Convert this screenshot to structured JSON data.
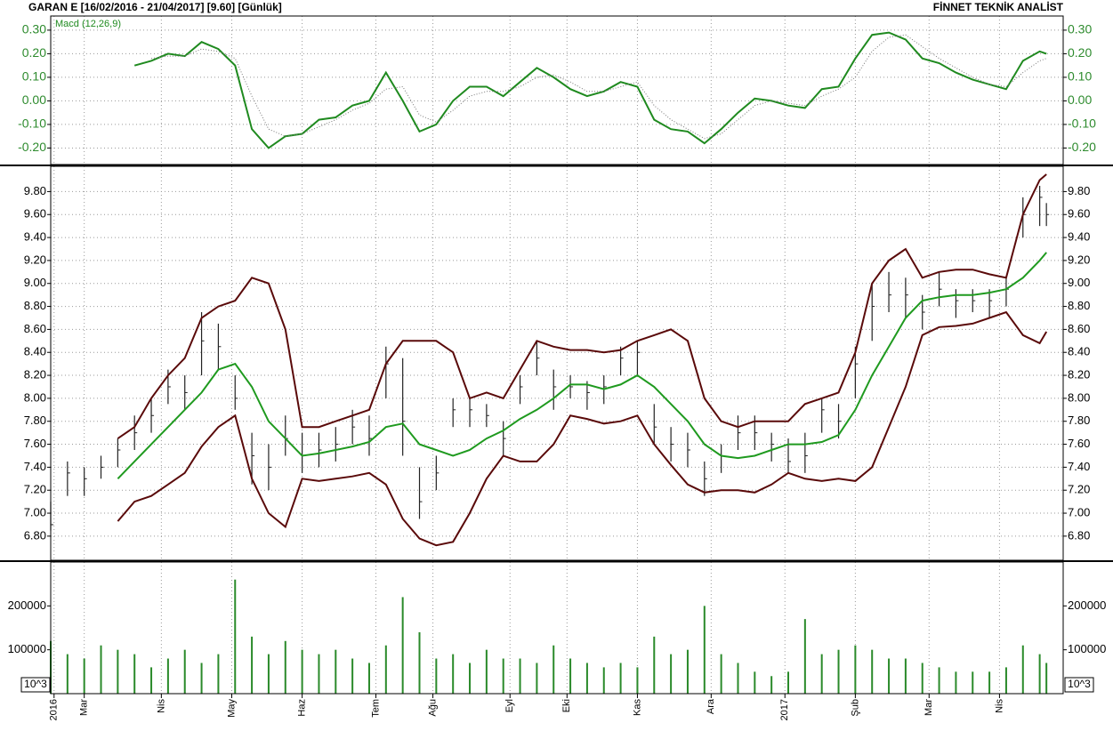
{
  "header": {
    "title": "GARAN E  [16/02/2016 - 21/04/2017]  [9.60]  [Günlük]",
    "brand": "FİNNET TEKNİK ANALİST"
  },
  "chart_data": [
    {
      "type": "line",
      "label": "Macd (12,26,9)",
      "axis_color": "#2e8b2e",
      "x": [
        0,
        5,
        10,
        15,
        20,
        25,
        30,
        35,
        40,
        45,
        50,
        55,
        60,
        65,
        70,
        75,
        80,
        85,
        90,
        95,
        100,
        105,
        110,
        115,
        120,
        125,
        130,
        135,
        140,
        145,
        150,
        155,
        160,
        165,
        170,
        175,
        180,
        185,
        190,
        195,
        200,
        205,
        210,
        215,
        220,
        225,
        230,
        235,
        240,
        245,
        250,
        255,
        260,
        265,
        270,
        275,
        280,
        285,
        290,
        295,
        297
      ],
      "ylim": [
        -0.27,
        0.36
      ],
      "yticks": [
        {
          "value": 0.3,
          "label": "0.30"
        },
        {
          "value": 0.2,
          "label": "0.20"
        },
        {
          "value": 0.1,
          "label": "0.10"
        },
        {
          "value": 0,
          "label": "0.00"
        },
        {
          "value": -0.1,
          "label": "-0.10"
        },
        {
          "value": -0.2,
          "label": "-0.20"
        }
      ],
      "grid": true,
      "series": [
        {
          "color": "#1f8a1f",
          "dotted": false,
          "values": [
            null,
            null,
            null,
            null,
            null,
            0.15,
            0.17,
            0.2,
            0.19,
            0.25,
            0.22,
            0.15,
            -0.12,
            -0.2,
            -0.15,
            -0.14,
            -0.08,
            -0.07,
            -0.02,
            0.0,
            0.12,
            0.0,
            -0.13,
            -0.1,
            0.0,
            0.06,
            0.06,
            0.02,
            0.08,
            0.14,
            0.1,
            0.05,
            0.02,
            0.04,
            0.08,
            0.06,
            -0.08,
            -0.12,
            -0.13,
            -0.18,
            -0.12,
            -0.05,
            0.01,
            0.0,
            -0.02,
            -0.03,
            0.05,
            0.06,
            0.18,
            0.28,
            0.29,
            0.26,
            0.18,
            0.16,
            0.12,
            0.09,
            0.07,
            0.05,
            0.17,
            0.21,
            0.2
          ]
        },
        {
          "color": "#777777",
          "dotted": true,
          "values": [
            null,
            null,
            null,
            null,
            null,
            null,
            0.18,
            0.19,
            0.19,
            0.22,
            0.21,
            0.18,
            0.02,
            -0.12,
            -0.15,
            -0.14,
            -0.11,
            -0.08,
            -0.04,
            -0.01,
            0.05,
            0.06,
            -0.06,
            -0.09,
            -0.04,
            0.02,
            0.04,
            0.04,
            0.06,
            0.1,
            0.11,
            0.08,
            0.04,
            0.04,
            0.06,
            0.08,
            -0.02,
            -0.08,
            -0.12,
            -0.16,
            -0.14,
            -0.08,
            -0.02,
            0.0,
            -0.01,
            -0.02,
            0.02,
            0.05,
            0.1,
            0.21,
            0.27,
            0.28,
            0.23,
            0.18,
            0.14,
            0.1,
            0.07,
            0.06,
            0.12,
            0.17,
            0.18
          ]
        }
      ]
    },
    {
      "type": "hlc",
      "axis_color": "#000000",
      "color": "#222222",
      "x": [
        0,
        5,
        10,
        15,
        20,
        25,
        30,
        35,
        40,
        45,
        50,
        55,
        60,
        65,
        70,
        75,
        80,
        85,
        90,
        95,
        100,
        105,
        110,
        115,
        120,
        125,
        130,
        135,
        140,
        145,
        150,
        155,
        160,
        165,
        170,
        175,
        180,
        185,
        190,
        195,
        200,
        205,
        210,
        215,
        220,
        225,
        230,
        235,
        240,
        245,
        250,
        255,
        260,
        265,
        270,
        275,
        280,
        285,
        290,
        295,
        297
      ],
      "ylim": [
        6.59,
        10.02
      ],
      "yticks": [
        {
          "value": 6.8,
          "label": "6.80"
        },
        {
          "value": 7,
          "label": "7.00"
        },
        {
          "value": 7.2,
          "label": "7.20"
        },
        {
          "value": 7.4,
          "label": "7.40"
        },
        {
          "value": 7.6,
          "label": "7.60"
        },
        {
          "value": 7.8,
          "label": "7.80"
        },
        {
          "value": 8,
          "label": "8.00"
        },
        {
          "value": 8.2,
          "label": "8.20"
        },
        {
          "value": 8.4,
          "label": "8.40"
        },
        {
          "value": 8.6,
          "label": "8.60"
        },
        {
          "value": 8.8,
          "label": "8.80"
        },
        {
          "value": 9,
          "label": "9.00"
        },
        {
          "value": 9.2,
          "label": "9.20"
        },
        {
          "value": 9.4,
          "label": "9.40"
        },
        {
          "value": 9.6,
          "label": "9.60"
        },
        {
          "value": 9.8,
          "label": "9.80"
        }
      ],
      "grid": true,
      "high": [
        7.1,
        7.45,
        7.4,
        7.5,
        7.65,
        7.85,
        8.0,
        8.25,
        8.2,
        8.75,
        8.65,
        8.2,
        7.7,
        7.6,
        7.85,
        7.7,
        7.7,
        7.75,
        7.9,
        7.85,
        8.45,
        8.35,
        7.4,
        7.5,
        8.0,
        8.0,
        7.95,
        7.8,
        8.2,
        8.5,
        8.25,
        8.2,
        8.15,
        8.2,
        8.45,
        8.5,
        7.95,
        7.75,
        7.7,
        7.45,
        7.6,
        7.85,
        7.85,
        7.7,
        7.65,
        7.7,
        8.0,
        7.95,
        8.45,
        9.0,
        9.1,
        9.05,
        8.9,
        9.1,
        8.95,
        8.95,
        8.95,
        9.05,
        9.75,
        9.85,
        9.7
      ],
      "low": [
        6.85,
        7.15,
        7.15,
        7.3,
        7.4,
        7.55,
        7.7,
        7.95,
        7.9,
        8.2,
        8.25,
        7.9,
        7.25,
        7.2,
        7.5,
        7.35,
        7.4,
        7.45,
        7.6,
        7.5,
        8.0,
        7.5,
        6.95,
        7.2,
        7.75,
        7.75,
        7.75,
        7.5,
        7.95,
        8.2,
        7.9,
        8.0,
        7.9,
        7.95,
        8.2,
        8.2,
        7.6,
        7.45,
        7.4,
        7.15,
        7.35,
        7.55,
        7.55,
        7.45,
        7.35,
        7.35,
        7.7,
        7.65,
        8.0,
        8.5,
        8.75,
        8.7,
        8.6,
        8.8,
        8.7,
        8.75,
        8.7,
        8.8,
        9.4,
        9.5,
        9.5
      ],
      "close": [
        6.9,
        7.35,
        7.3,
        7.4,
        7.55,
        7.7,
        7.85,
        8.1,
        8.05,
        8.5,
        8.45,
        8.0,
        7.5,
        7.4,
        7.65,
        7.5,
        7.55,
        7.6,
        7.75,
        7.65,
        8.3,
        7.8,
        7.1,
        7.35,
        7.9,
        7.9,
        7.85,
        7.65,
        8.1,
        8.35,
        8.1,
        8.1,
        8.05,
        8.1,
        8.35,
        8.4,
        7.75,
        7.6,
        7.55,
        7.3,
        7.5,
        7.7,
        7.7,
        7.6,
        7.45,
        7.5,
        7.9,
        7.8,
        8.3,
        8.8,
        8.9,
        8.9,
        8.75,
        8.95,
        8.85,
        8.85,
        8.85,
        8.95,
        9.6,
        9.75,
        9.6
      ],
      "series": [
        {
          "color": "#5a0a0a",
          "values": [
            null,
            null,
            null,
            null,
            7.65,
            7.75,
            8.0,
            8.2,
            8.35,
            8.7,
            8.8,
            8.85,
            9.05,
            9.0,
            8.6,
            7.75,
            7.75,
            7.8,
            7.85,
            7.9,
            8.3,
            8.5,
            8.5,
            8.5,
            8.4,
            8.0,
            8.05,
            8.0,
            8.25,
            8.5,
            8.45,
            8.42,
            8.42,
            8.4,
            8.42,
            8.5,
            8.55,
            8.6,
            8.5,
            8.0,
            7.8,
            7.75,
            7.8,
            7.8,
            7.8,
            7.95,
            8.0,
            8.05,
            8.4,
            9.0,
            9.2,
            9.3,
            9.05,
            9.1,
            9.12,
            9.12,
            9.08,
            9.05,
            9.6,
            9.9,
            9.95
          ]
        },
        {
          "color": "#1f9a1f",
          "values": [
            null,
            null,
            null,
            null,
            7.3,
            7.45,
            7.6,
            7.75,
            7.9,
            8.05,
            8.25,
            8.3,
            8.1,
            7.8,
            7.65,
            7.5,
            7.52,
            7.55,
            7.58,
            7.62,
            7.75,
            7.78,
            7.6,
            7.55,
            7.5,
            7.55,
            7.65,
            7.72,
            7.82,
            7.9,
            8.0,
            8.12,
            8.12,
            8.08,
            8.12,
            8.2,
            8.1,
            7.95,
            7.8,
            7.6,
            7.5,
            7.48,
            7.5,
            7.55,
            7.6,
            7.6,
            7.62,
            7.68,
            7.9,
            8.2,
            8.45,
            8.7,
            8.85,
            8.88,
            8.9,
            8.9,
            8.92,
            8.95,
            9.05,
            9.2,
            9.27
          ]
        },
        {
          "color": "#5a0a0a",
          "values": [
            null,
            null,
            null,
            null,
            6.93,
            7.1,
            7.15,
            7.25,
            7.35,
            7.58,
            7.75,
            7.85,
            7.3,
            7.0,
            6.88,
            7.3,
            7.28,
            7.3,
            7.32,
            7.35,
            7.25,
            6.95,
            6.78,
            6.72,
            6.75,
            7.0,
            7.3,
            7.5,
            7.45,
            7.45,
            7.6,
            7.85,
            7.82,
            7.78,
            7.8,
            7.85,
            7.6,
            7.42,
            7.25,
            7.18,
            7.2,
            7.2,
            7.18,
            7.25,
            7.35,
            7.3,
            7.28,
            7.3,
            7.28,
            7.4,
            7.75,
            8.1,
            8.55,
            8.62,
            8.63,
            8.65,
            8.7,
            8.75,
            8.55,
            8.48,
            8.58
          ]
        }
      ]
    },
    {
      "type": "bar",
      "axis_color": "#000000",
      "color": "#2a8a2a",
      "unit_label": "10^3",
      "x": [
        0,
        5,
        10,
        15,
        20,
        25,
        30,
        35,
        40,
        45,
        50,
        55,
        60,
        65,
        70,
        75,
        80,
        85,
        90,
        95,
        100,
        105,
        110,
        115,
        120,
        125,
        130,
        135,
        140,
        145,
        150,
        155,
        160,
        165,
        170,
        175,
        180,
        185,
        190,
        195,
        200,
        205,
        210,
        215,
        220,
        225,
        230,
        235,
        240,
        245,
        250,
        255,
        260,
        265,
        270,
        275,
        280,
        285,
        290,
        295,
        297
      ],
      "values": [
        120000,
        90000,
        80000,
        110000,
        100000,
        90000,
        60000,
        80000,
        100000,
        70000,
        90000,
        260000,
        130000,
        90000,
        120000,
        100000,
        90000,
        100000,
        80000,
        70000,
        110000,
        220000,
        140000,
        80000,
        90000,
        70000,
        100000,
        80000,
        80000,
        70000,
        110000,
        80000,
        70000,
        60000,
        70000,
        60000,
        130000,
        90000,
        100000,
        200000,
        90000,
        70000,
        50000,
        40000,
        50000,
        170000,
        90000,
        100000,
        110000,
        100000,
        80000,
        80000,
        70000,
        60000,
        50000,
        50000,
        50000,
        60000,
        110000,
        90000,
        70000
      ],
      "ylim": [
        0,
        300000
      ],
      "yticks": [
        100000,
        200000
      ],
      "grid": false,
      "xlim": [
        0,
        302
      ],
      "xticks": [
        {
          "value": 1,
          "label": "2016"
        },
        {
          "value": 10,
          "label": "Mar"
        },
        {
          "value": 33,
          "label": "Nis"
        },
        {
          "value": 54,
          "label": "May"
        },
        {
          "value": 75,
          "label": "Haz"
        },
        {
          "value": 97,
          "label": "Tem"
        },
        {
          "value": 114,
          "label": "Ağu"
        },
        {
          "value": 137,
          "label": "Eyl"
        },
        {
          "value": 154,
          "label": "Eki"
        },
        {
          "value": 175,
          "label": "Kas"
        },
        {
          "value": 197,
          "label": "Ara"
        },
        {
          "value": 219,
          "label": "2017"
        },
        {
          "value": 240,
          "label": "Şub"
        },
        {
          "value": 262,
          "label": "Mar"
        },
        {
          "value": 283,
          "label": "Nis"
        }
      ]
    }
  ]
}
